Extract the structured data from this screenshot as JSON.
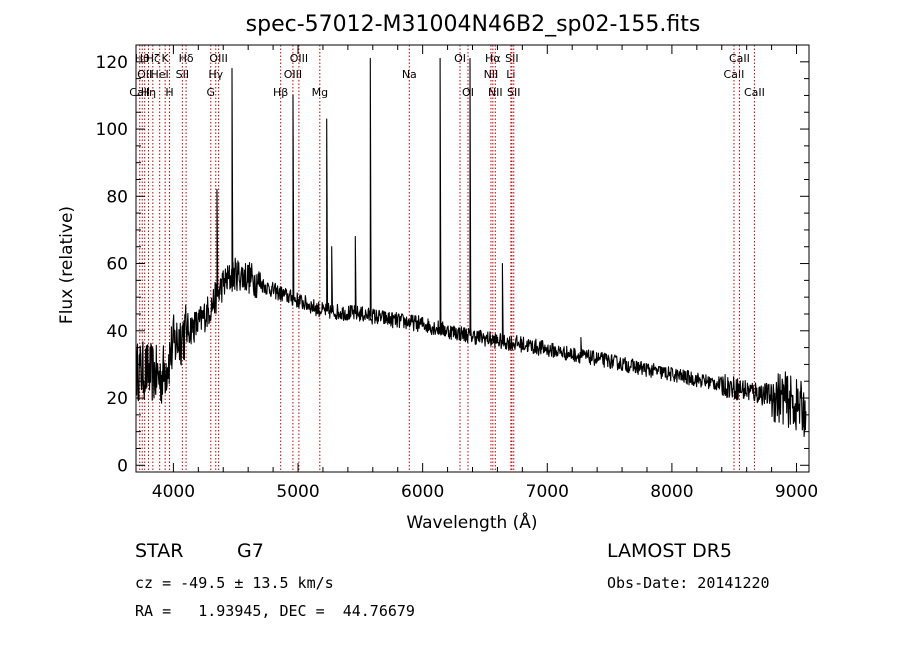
{
  "chart_data": {
    "type": "line",
    "title": "spec-57012-M31004N46B2_sp02-155.fits",
    "xlabel": "Wavelength (Å)",
    "ylabel": "Flux (relative)",
    "xlim": [
      3700,
      9100
    ],
    "ylim": [
      -2,
      125
    ],
    "x_ticks": [
      4000,
      5000,
      6000,
      7000,
      8000,
      9000
    ],
    "x_tick_labels": [
      "4000",
      "5000",
      "6000",
      "7000",
      "8000",
      "9000"
    ],
    "y_ticks": [
      0,
      20,
      40,
      60,
      80,
      100,
      120
    ],
    "y_tick_labels": [
      "0",
      "20",
      "40",
      "60",
      "80",
      "100",
      "120"
    ],
    "grid": false,
    "series": [
      {
        "color": "#000000",
        "continuum": [
          [
            3700,
            28
          ],
          [
            3800,
            28
          ],
          [
            3900,
            26
          ],
          [
            3950,
            30
          ],
          [
            4000,
            36
          ],
          [
            4100,
            40
          ],
          [
            4200,
            42
          ],
          [
            4300,
            47
          ],
          [
            4400,
            54
          ],
          [
            4500,
            57
          ],
          [
            4600,
            56
          ],
          [
            4800,
            52
          ],
          [
            5000,
            49
          ],
          [
            5200,
            46
          ],
          [
            5500,
            45
          ],
          [
            5800,
            43
          ],
          [
            6000,
            42
          ],
          [
            6200,
            40
          ],
          [
            6400,
            38.5
          ],
          [
            6600,
            37
          ],
          [
            6800,
            36
          ],
          [
            7000,
            34.5
          ],
          [
            7200,
            33
          ],
          [
            7500,
            31
          ],
          [
            7800,
            28.5
          ],
          [
            8000,
            27
          ],
          [
            8200,
            25.5
          ],
          [
            8400,
            24
          ],
          [
            8500,
            23
          ],
          [
            8700,
            21.5
          ],
          [
            8900,
            20
          ],
          [
            9080,
            16
          ]
        ],
        "spikes": [
          [
            4350,
            82
          ],
          [
            4470,
            118
          ],
          [
            4960,
            110
          ],
          [
            5230,
            103
          ],
          [
            5270,
            65
          ],
          [
            5460,
            68
          ],
          [
            5580,
            121
          ],
          [
            6140,
            121
          ],
          [
            6380,
            121
          ],
          [
            6640,
            60
          ],
          [
            7270,
            38
          ],
          [
            8450,
            24
          ]
        ]
      }
    ],
    "line_markers": [
      {
        "x": 3730,
        "label": "CaII",
        "row": 3
      },
      {
        "x": 3750,
        "label": "Hθ",
        "row": 1
      },
      {
        "x": 3770,
        "label": "OII",
        "row": 2
      },
      {
        "x": 3800,
        "label": "Hη",
        "row": 3
      },
      {
        "x": 3835,
        "label": "Hζ",
        "row": 1
      },
      {
        "x": 3890,
        "label": "HeI",
        "row": 2
      },
      {
        "x": 3934,
        "label": "K",
        "row": 1
      },
      {
        "x": 3969,
        "label": "H",
        "row": 3
      },
      {
        "x": 4072,
        "label": "SII",
        "row": 2
      },
      {
        "x": 4102,
        "label": "Hδ",
        "row": 1
      },
      {
        "x": 4300,
        "label": "G",
        "row": 3
      },
      {
        "x": 4340,
        "label": "Hγ",
        "row": 2
      },
      {
        "x": 4363,
        "label": "OIII",
        "row": 1
      },
      {
        "x": 4861,
        "label": "Hβ",
        "row": 3
      },
      {
        "x": 4959,
        "label": "OIII",
        "row": 2
      },
      {
        "x": 5007,
        "label": "OIII",
        "row": 1
      },
      {
        "x": 5175,
        "label": "Mg",
        "row": 3
      },
      {
        "x": 5893,
        "label": "Na",
        "row": 2
      },
      {
        "x": 6300,
        "label": "OI",
        "row": 1
      },
      {
        "x": 6364,
        "label": "OI",
        "row": 3
      },
      {
        "x": 6548,
        "label": "NII",
        "row": 2
      },
      {
        "x": 6563,
        "label": "Hα",
        "row": 1
      },
      {
        "x": 6583,
        "label": "NII",
        "row": 3
      },
      {
        "x": 6708,
        "label": "Li",
        "row": 2
      },
      {
        "x": 6716,
        "label": "SII",
        "row": 1
      },
      {
        "x": 6731,
        "label": "SII",
        "row": 3
      },
      {
        "x": 8498,
        "label": "CaII",
        "row": 2
      },
      {
        "x": 8542,
        "label": "CaII",
        "row": 1
      },
      {
        "x": 8662,
        "label": "CaII",
        "row": 3
      }
    ]
  },
  "info": {
    "object_class": "STAR",
    "subclass": "G7",
    "survey": "LAMOST DR5",
    "redshift": "cz = -49.5 ± 13.5 km/s",
    "obs_date": "Obs-Date: 20141220",
    "coords": "RA =   1.93945, DEC =  44.76679"
  }
}
